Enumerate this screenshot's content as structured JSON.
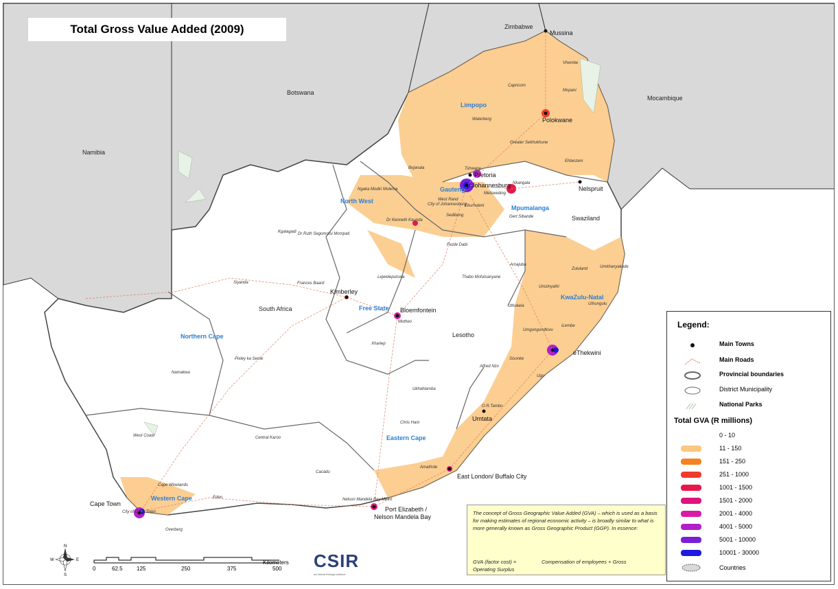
{
  "title": "Total Gross Value Added (2009)",
  "countries": [
    "Zimbabwe",
    "Botswana",
    "Mocambique",
    "Namibia",
    "Swaziland",
    "Lesotho",
    "South Africa"
  ],
  "provinces": [
    "Limpopo",
    "North West",
    "Gauteng",
    "Mpumalanga",
    "Free State",
    "KwaZulu-Natal",
    "Northern Cape",
    "Eastern Cape",
    "Western Cape"
  ],
  "towns": [
    "Mussina",
    "Polokwane",
    "Pretoria",
    "Johannesburg",
    "Nelspruit",
    "Kimberley",
    "Bloemfontein",
    "eThekwini",
    "Umtata",
    "East London/ Buffalo City",
    "Port Elizabeth /",
    "Nelson Mandela Bay",
    "Cape Town"
  ],
  "districts": [
    "Vhembe",
    "Capricorn",
    "Mopani",
    "Waterberg",
    "Greater Sekhukhune",
    "Ehlanzeni",
    "Bojanala",
    "Nkangala",
    "Gert Sibande",
    "Ngaka Modiri Molema",
    "Dr Kenneth Kaunda",
    "Dr Ruth Segomotsi Mompati",
    "Fezile Dabi",
    "Lejweleputswa",
    "Thabo Mofutsanyane",
    "Motheo",
    "Xhariep",
    "Frances Baard",
    "Siyanda",
    "Kgalagadi",
    "Pixley ka Seme",
    "Namakwa",
    "West Coast",
    "Cape Winelands",
    "Central Karoo",
    "Eden",
    "Overberg",
    "Cacadu",
    "Nelson Mandela Bay Metro",
    "Amathole",
    "Chris Hani",
    "Ukhahlamba",
    "O.R.Tambo",
    "Alfred Nzo",
    "Sisonke",
    "Ugu",
    "Umgungundlovu",
    "Uthukela",
    "Umzinyathi",
    "Amajuba",
    "Zululand",
    "Umkhanyakude",
    "Uthungulu",
    "iLembe",
    "Sedibeng",
    "Tshwane",
    "Ekurhuleni",
    "West Rand",
    "City of Johannesburg",
    "Metsweding",
    "City of Cape Town"
  ],
  "legend": {
    "heading": "Legend:",
    "items": [
      {
        "label": "Main Towns",
        "symbol": "town-dot-icon"
      },
      {
        "label": "Main Roads",
        "symbol": "road-line-icon"
      },
      {
        "label": "Provincial boundaries",
        "symbol": "province-boundary-icon"
      },
      {
        "label": "District Municipality",
        "symbol": "district-boundary-icon"
      },
      {
        "label": "National Parks",
        "symbol": "national-park-hatch-icon"
      }
    ],
    "gva_heading": "Total GVA (R millions)",
    "classes": [
      {
        "label": "0 - 10",
        "color": "#ffffff"
      },
      {
        "label": "11 - 150",
        "color": "#fbc67f"
      },
      {
        "label": "151 - 250",
        "color": "#f6821f"
      },
      {
        "label": "251 - 1000",
        "color": "#ef3b2c"
      },
      {
        "label": "1001 - 1500",
        "color": "#e8174a"
      },
      {
        "label": "1501 - 2000",
        "color": "#e0137d"
      },
      {
        "label": "2001 - 4000",
        "color": "#d81aa6"
      },
      {
        "label": "4001 - 5000",
        "color": "#b21fc8"
      },
      {
        "label": "5001 - 10000",
        "color": "#7a1fd6"
      },
      {
        "label": "10001 - 30000",
        "color": "#1c19e0"
      }
    ],
    "countries_label": "Countries"
  },
  "note": {
    "body": "The concept of Gross Geographic Value Added (GVA) – which is used as a basis for making estimates of regional economic activity – is broadly similar to what is more generally known as Gross Geographic Product (GGP). In essence:",
    "formula_left": "GVA (factor cost) =",
    "formula_right": "Compensation of employees + Gross",
    "formula_cont": "Operating Surplus"
  },
  "scale": {
    "ticks": [
      "0",
      "62.5",
      "125",
      "250",
      "375",
      "500"
    ],
    "unit": "Kilometers"
  },
  "compass": [
    "N",
    "S",
    "E",
    "W"
  ],
  "logo": {
    "text": "CSIR",
    "tagline": "our future through science"
  },
  "colors": {
    "sea": "#ffffff",
    "neighbour": "#d9d9d9",
    "sa_land": "#ffffff",
    "province_line": "#666666",
    "road": "#e07b5a",
    "prov_label": "#2a7fd4"
  }
}
